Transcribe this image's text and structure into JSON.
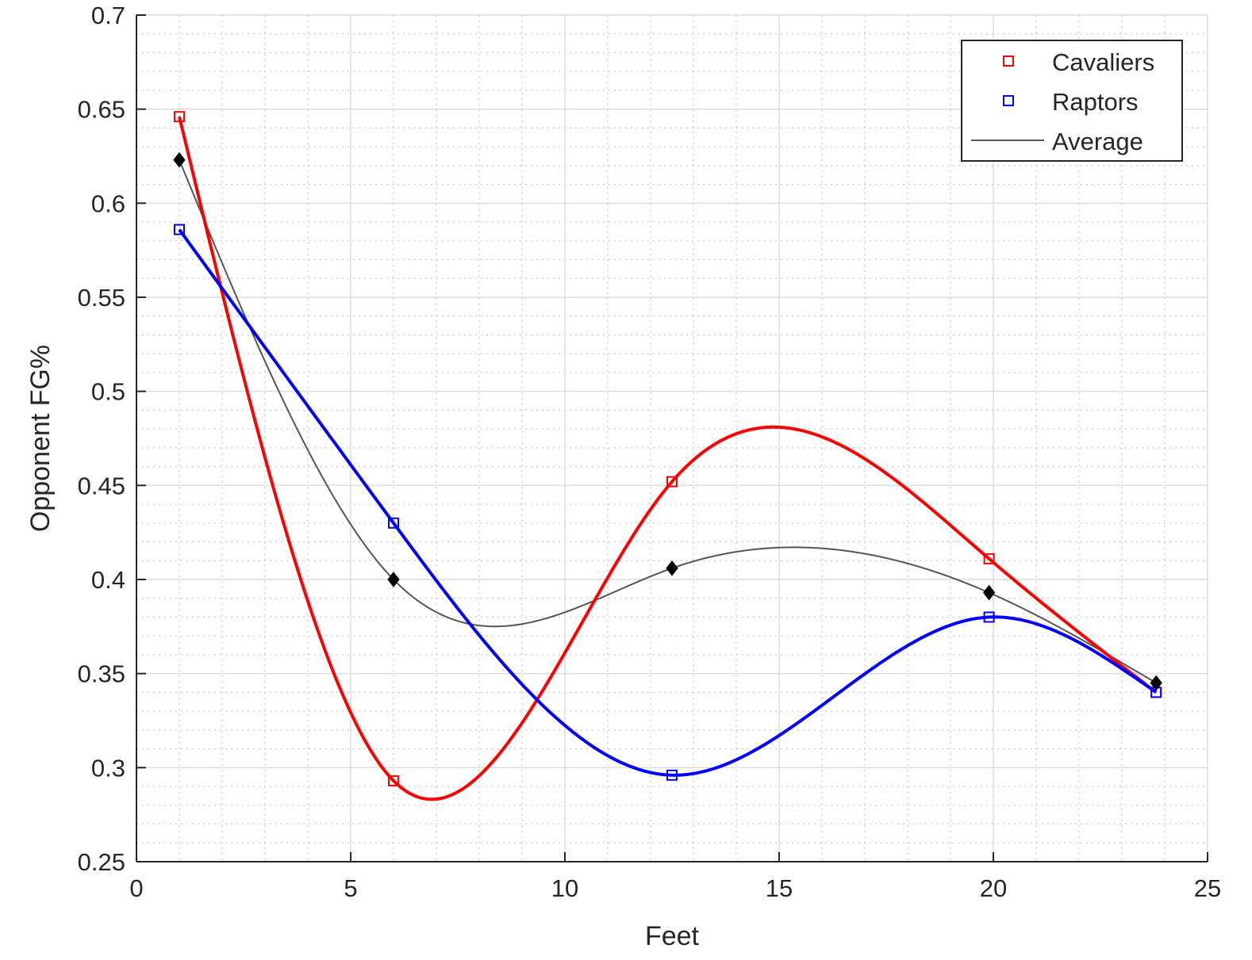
{
  "chart_data": {
    "type": "line",
    "xlabel": "Feet",
    "ylabel": "Opponent FG%",
    "xlim": [
      0,
      25
    ],
    "ylim": [
      0.25,
      0.7
    ],
    "xticks": [
      0,
      5,
      10,
      15,
      20,
      25
    ],
    "yticks": [
      0.25,
      0.3,
      0.35,
      0.4,
      0.45,
      0.5,
      0.55,
      0.6,
      0.65,
      0.7
    ],
    "xtick_labels": [
      "0",
      "5",
      "10",
      "15",
      "20",
      "25"
    ],
    "ytick_labels": [
      "0.25",
      "0.3",
      "0.35",
      "0.4",
      "0.45",
      "0.5",
      "0.55",
      "0.6",
      "0.65",
      "0.7"
    ],
    "grid": true,
    "minor_grid": true,
    "legend_position": "top-right",
    "series": [
      {
        "name": "Cavaliers",
        "color": "#ff0000",
        "marker": "square",
        "x": [
          1,
          6,
          12.5,
          19.9,
          23.8
        ],
        "y": [
          0.646,
          0.293,
          0.452,
          0.411,
          0.34
        ]
      },
      {
        "name": "Raptors",
        "color": "#0000ff",
        "marker": "square",
        "x": [
          1,
          6,
          12.5,
          19.9,
          23.8
        ],
        "y": [
          0.586,
          0.43,
          0.296,
          0.38,
          0.34
        ]
      },
      {
        "name": "Average",
        "color": "#555555",
        "marker": "diamond",
        "marker_color": "#000000",
        "x": [
          1,
          6,
          12.5,
          19.9,
          23.8
        ],
        "y": [
          0.623,
          0.4,
          0.406,
          0.393,
          0.345
        ]
      }
    ]
  }
}
